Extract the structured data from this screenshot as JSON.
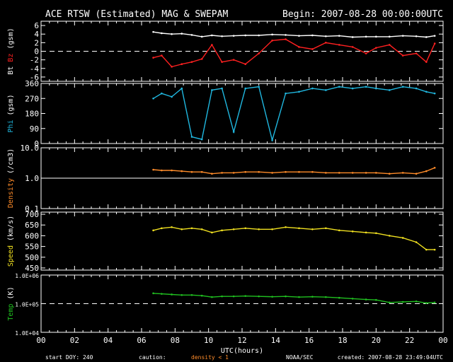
{
  "header": {
    "title": "ACE RTSW (Estimated) MAG & SWEPAM",
    "begin": "Begin: 2007-08-28 00:00:00UTC"
  },
  "footer": {
    "start_doy": "start DOY: 240",
    "caution": "caution:",
    "density_warning": "density < 1",
    "noaa": "NOAA/SEC",
    "created": "created: 2007-08-28 23:49:04UTC"
  },
  "colors": {
    "axis": "#ffffff",
    "bt": "#ffffff",
    "bz": "#ff2020",
    "phi": "#20b8e0",
    "density": "#ff8c2a",
    "speed": "#f0e020",
    "temp": "#20c020",
    "warning": "#ff8c2a"
  },
  "chart_data": {
    "type": "line",
    "x_label": "UTC(hours)",
    "x_range": [
      0,
      24
    ],
    "x_ticks": [
      "00",
      "02",
      "04",
      "06",
      "08",
      "10",
      "12",
      "14",
      "16",
      "18",
      "20",
      "22",
      "00"
    ],
    "panels": [
      {
        "id": "mag",
        "ylabel_parts": [
          {
            "text": "Bt",
            "color": "bt"
          },
          {
            "text": "Bz",
            "color": "bz"
          },
          {
            "text": "(gsm)",
            "color": "axis"
          }
        ],
        "ylim": [
          -7,
          7
        ],
        "scale": "linear",
        "ticks": [
          {
            "v": 6,
            "label": "6"
          },
          {
            "v": 4,
            "label": "4"
          },
          {
            "v": 2,
            "label": "2"
          },
          {
            "v": 0,
            "label": "0"
          },
          {
            "v": -2,
            "label": "-2"
          },
          {
            "v": -4,
            "label": "-4"
          },
          {
            "v": -6,
            "label": "-6"
          }
        ],
        "ref_line": {
          "value": 0,
          "style": "dashed"
        },
        "series": [
          {
            "name": "Bt",
            "color": "bt",
            "x": [
              6.7,
              7.2,
              7.8,
              8.4,
              9.0,
              9.6,
              10.2,
              10.8,
              11.5,
              12.2,
              13.0,
              13.8,
              14.6,
              15.4,
              16.2,
              17.0,
              17.8,
              18.6,
              19.4,
              20.0,
              20.8,
              21.6,
              22.4,
              23.0,
              23.5
            ],
            "y": [
              4.5,
              4.2,
              4.0,
              4.1,
              3.8,
              3.4,
              3.7,
              3.5,
              3.6,
              3.7,
              3.7,
              3.9,
              3.8,
              3.6,
              3.7,
              3.5,
              3.6,
              3.3,
              3.4,
              3.4,
              3.4,
              3.6,
              3.5,
              3.3,
              3.6
            ]
          },
          {
            "name": "Bz",
            "color": "bz",
            "x": [
              6.7,
              7.2,
              7.8,
              8.4,
              9.0,
              9.6,
              10.2,
              10.8,
              11.5,
              12.2,
              13.0,
              13.8,
              14.6,
              15.4,
              16.2,
              17.0,
              17.8,
              18.6,
              19.4,
              20.0,
              20.8,
              21.6,
              22.4,
              23.0,
              23.5
            ],
            "y": [
              -1.5,
              -1.0,
              -3.6,
              -3.0,
              -2.5,
              -1.8,
              1.5,
              -2.5,
              -2.0,
              -3.0,
              -0.5,
              2.5,
              2.8,
              1.0,
              0.5,
              2.0,
              1.5,
              1.0,
              -0.5,
              0.8,
              1.5,
              -1.0,
              -0.5,
              -2.5,
              1.8
            ]
          }
        ]
      },
      {
        "id": "phi",
        "ylabel_parts": [
          {
            "text": "Phi",
            "color": "phi"
          },
          {
            "text": "(gsm)",
            "color": "axis"
          }
        ],
        "ylim": [
          0,
          360
        ],
        "scale": "linear",
        "ticks": [
          {
            "v": 360,
            "label": "360"
          },
          {
            "v": 270,
            "label": "270"
          },
          {
            "v": 180,
            "label": "180"
          },
          {
            "v": 90,
            "label": "90"
          },
          {
            "v": 0,
            "label": "0"
          }
        ],
        "series": [
          {
            "name": "Phi",
            "color": "phi",
            "x": [
              6.7,
              7.2,
              7.8,
              8.4,
              9.0,
              9.6,
              10.2,
              10.8,
              11.5,
              12.2,
              13.0,
              13.8,
              14.6,
              15.4,
              16.2,
              17.0,
              17.8,
              18.6,
              19.4,
              20.0,
              20.8,
              21.6,
              22.4,
              23.0,
              23.5
            ],
            "y": [
              270,
              300,
              280,
              330,
              40,
              25,
              320,
              330,
              70,
              330,
              340,
              20,
              300,
              310,
              330,
              320,
              340,
              330,
              340,
              330,
              320,
              340,
              330,
              310,
              300
            ]
          }
        ]
      },
      {
        "id": "density",
        "ylabel_parts": [
          {
            "text": "Density",
            "color": "density"
          },
          {
            "text": "(/cm3)",
            "color": "axis"
          }
        ],
        "ylim": [
          0.1,
          10
        ],
        "scale": "log",
        "ticks": [
          {
            "v": 10,
            "label": "10.0"
          },
          {
            "v": 1,
            "label": "1.0"
          },
          {
            "v": 0.1,
            "label": "0.1"
          }
        ],
        "ref_line": {
          "value": 1,
          "style": "solid"
        },
        "series": [
          {
            "name": "Density",
            "color": "density",
            "x": [
              6.7,
              7.2,
              7.8,
              8.4,
              9.0,
              9.6,
              10.2,
              10.8,
              11.5,
              12.2,
              13.0,
              13.8,
              14.6,
              15.4,
              16.2,
              17.0,
              17.8,
              18.6,
              19.4,
              20.0,
              20.8,
              21.6,
              22.4,
              23.0,
              23.5
            ],
            "y": [
              1.9,
              1.8,
              1.8,
              1.7,
              1.6,
              1.6,
              1.4,
              1.5,
              1.5,
              1.6,
              1.6,
              1.5,
              1.6,
              1.6,
              1.6,
              1.5,
              1.5,
              1.5,
              1.5,
              1.5,
              1.4,
              1.5,
              1.4,
              1.7,
              2.2
            ]
          }
        ]
      },
      {
        "id": "speed",
        "ylabel_parts": [
          {
            "text": "Speed",
            "color": "speed"
          },
          {
            "text": "(km/s)",
            "color": "axis"
          }
        ],
        "ylim": [
          440,
          710
        ],
        "scale": "linear",
        "ticks": [
          {
            "v": 700,
            "label": "700"
          },
          {
            "v": 650,
            "label": "650"
          },
          {
            "v": 600,
            "label": "600"
          },
          {
            "v": 550,
            "label": "550"
          },
          {
            "v": 500,
            "label": "500"
          },
          {
            "v": 450,
            "label": "450"
          }
        ],
        "series": [
          {
            "name": "Speed",
            "color": "speed",
            "x": [
              6.7,
              7.2,
              7.8,
              8.4,
              9.0,
              9.6,
              10.2,
              10.8,
              11.5,
              12.2,
              13.0,
              13.8,
              14.6,
              15.4,
              16.2,
              17.0,
              17.8,
              18.6,
              19.4,
              20.0,
              20.8,
              21.6,
              22.4,
              23.0,
              23.5
            ],
            "y": [
              625,
              635,
              640,
              630,
              635,
              630,
              615,
              625,
              630,
              635,
              630,
              630,
              640,
              635,
              630,
              635,
              625,
              620,
              615,
              612,
              600,
              590,
              570,
              535,
              535
            ]
          }
        ]
      },
      {
        "id": "temp",
        "ylabel_parts": [
          {
            "text": "Temp",
            "color": "temp"
          },
          {
            "text": "(K)",
            "color": "axis"
          }
        ],
        "ylim": [
          10000,
          1000000
        ],
        "scale": "log",
        "ticks": [
          {
            "v": 1000000,
            "label": "1.0E+06"
          },
          {
            "v": 100000,
            "label": "1.0E+05"
          },
          {
            "v": 10000,
            "label": "1.0E+04"
          }
        ],
        "ref_line": {
          "value": 100000,
          "style": "dashed"
        },
        "series": [
          {
            "name": "Temp",
            "color": "temp",
            "x": [
              6.7,
              7.2,
              7.8,
              8.4,
              9.0,
              9.6,
              10.2,
              10.8,
              11.5,
              12.2,
              13.0,
              13.8,
              14.6,
              15.4,
              16.2,
              17.0,
              17.8,
              18.6,
              19.4,
              20.0,
              20.8,
              21.6,
              22.4,
              23.0,
              23.5
            ],
            "y": [
              230000,
              220000,
              210000,
              200000,
              200000,
              190000,
              170000,
              180000,
              180000,
              185000,
              180000,
              175000,
              180000,
              170000,
              175000,
              170000,
              160000,
              150000,
              140000,
              135000,
              110000,
              115000,
              120000,
              105000,
              110000
            ]
          }
        ]
      }
    ]
  }
}
